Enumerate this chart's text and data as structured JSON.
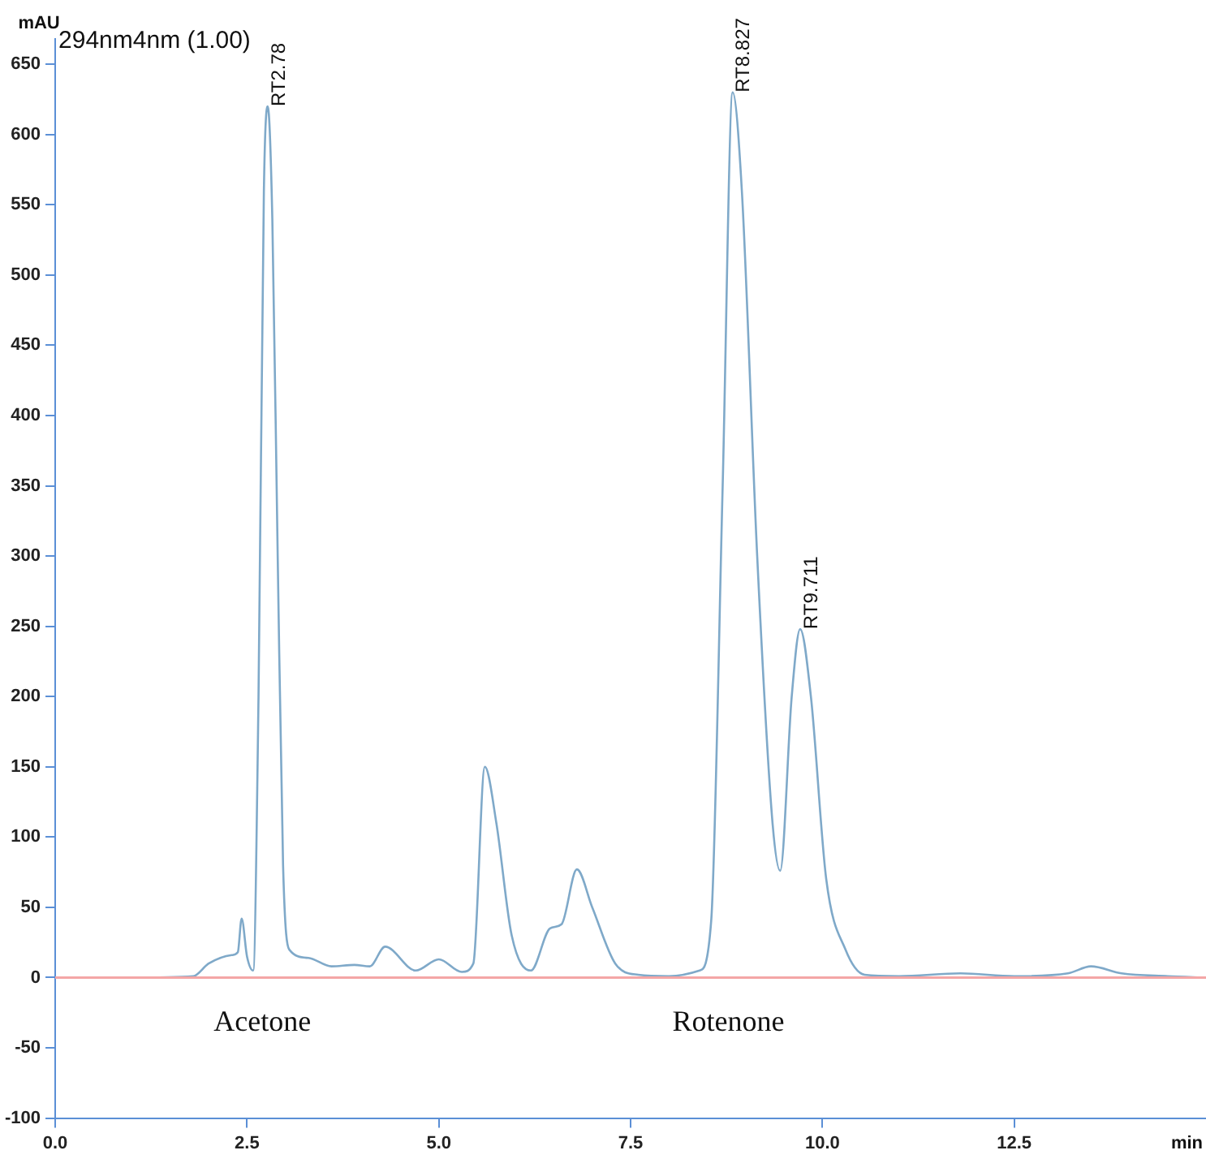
{
  "chart_data": {
    "type": "line",
    "title": "294nm4nm (1.00)",
    "xlabel": "min",
    "ylabel": "mAU",
    "xlim": [
      0,
      15
    ],
    "xticks": [
      {
        "value": 0,
        "label": "0.0"
      },
      {
        "value": 2.5,
        "label": "2.5"
      },
      {
        "value": 5,
        "label": "5.0"
      },
      {
        "value": 7.5,
        "label": "7.5"
      },
      {
        "value": 10,
        "label": "10.0"
      },
      {
        "value": 12.5,
        "label": "12.5"
      }
    ],
    "ylim": [
      -100,
      668
    ],
    "yticks": [
      -100,
      -50,
      0,
      50,
      100,
      150,
      200,
      250,
      300,
      350,
      400,
      450,
      500,
      550,
      600,
      650
    ],
    "grid": false,
    "legend": false,
    "marker": "none",
    "line_style": "solid",
    "x": [
      0,
      1,
      1.8,
      2,
      2.3,
      2.38,
      2.43,
      2.5,
      2.58,
      2.65,
      2.72,
      2.77,
      2.83,
      2.9,
      2.97,
      3.05,
      3.3,
      3.6,
      3.9,
      4.1,
      4.3,
      4.7,
      5,
      5.3,
      5.45,
      5.6,
      5.75,
      5.95,
      6.2,
      6.45,
      6.6,
      6.8,
      7,
      7.3,
      7.6,
      8,
      8.4,
      8.55,
      8.7,
      8.83,
      8.95,
      9.15,
      9.35,
      9.45,
      9.6,
      9.71,
      9.85,
      10.05,
      10.3,
      10.55,
      11,
      11.8,
      12.5,
      13.2,
      13.5,
      13.9,
      14.5,
      15
    ],
    "series": [
      {
        "color": "#7fa9c9",
        "values": [
          0,
          0,
          1,
          10,
          16,
          18,
          42,
          15,
          5,
          200,
          560,
          620,
          540,
          300,
          80,
          20,
          14,
          8,
          9,
          8,
          22,
          5,
          13,
          4,
          10,
          150,
          110,
          30,
          5,
          35,
          38,
          77,
          50,
          10,
          2,
          1,
          5,
          40,
          350,
          630,
          560,
          300,
          110,
          76,
          200,
          248,
          200,
          70,
          20,
          2,
          1,
          3,
          1,
          3,
          8,
          3,
          1,
          0
        ]
      }
    ],
    "ref_lines": [
      {
        "axis": "y",
        "value": 0,
        "color": "#f4a6a6"
      }
    ],
    "annotations": [
      {
        "text": "RT2.78",
        "x": 2.77,
        "y": 620
      },
      {
        "text": "RT8.827",
        "x": 8.827,
        "y": 630
      },
      {
        "text": "RT9.711",
        "x": 9.711,
        "y": 248
      },
      "Acetone",
      "Rotenone"
    ]
  }
}
